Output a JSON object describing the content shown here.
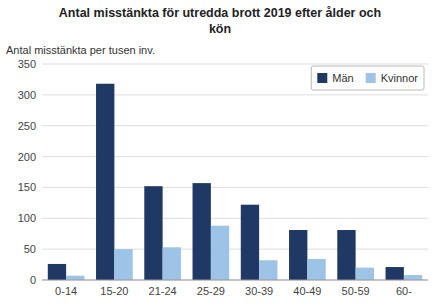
{
  "chart_data": {
    "type": "bar",
    "title": "Antal misstänkta för utredda brott 2019 efter ålder och\nkön",
    "ylabel": "Antal misstänkta per tusen inv.",
    "categories": [
      "0-14",
      "15-20",
      "21-24",
      "25-29",
      "30-39",
      "40-49",
      "50-59",
      "60-"
    ],
    "series": [
      {
        "name": "Män",
        "color": "#1F3864",
        "values": [
          26,
          318,
          152,
          157,
          122,
          81,
          81,
          21
        ]
      },
      {
        "name": "Kvinnor",
        "color": "#9DC3E6",
        "values": [
          7,
          50,
          53,
          88,
          32,
          34,
          20,
          8
        ]
      }
    ],
    "ylim": [
      0,
      350
    ],
    "yticks": [
      0,
      50,
      100,
      150,
      200,
      250,
      300,
      350
    ],
    "grid": true,
    "legend": "upper right"
  }
}
